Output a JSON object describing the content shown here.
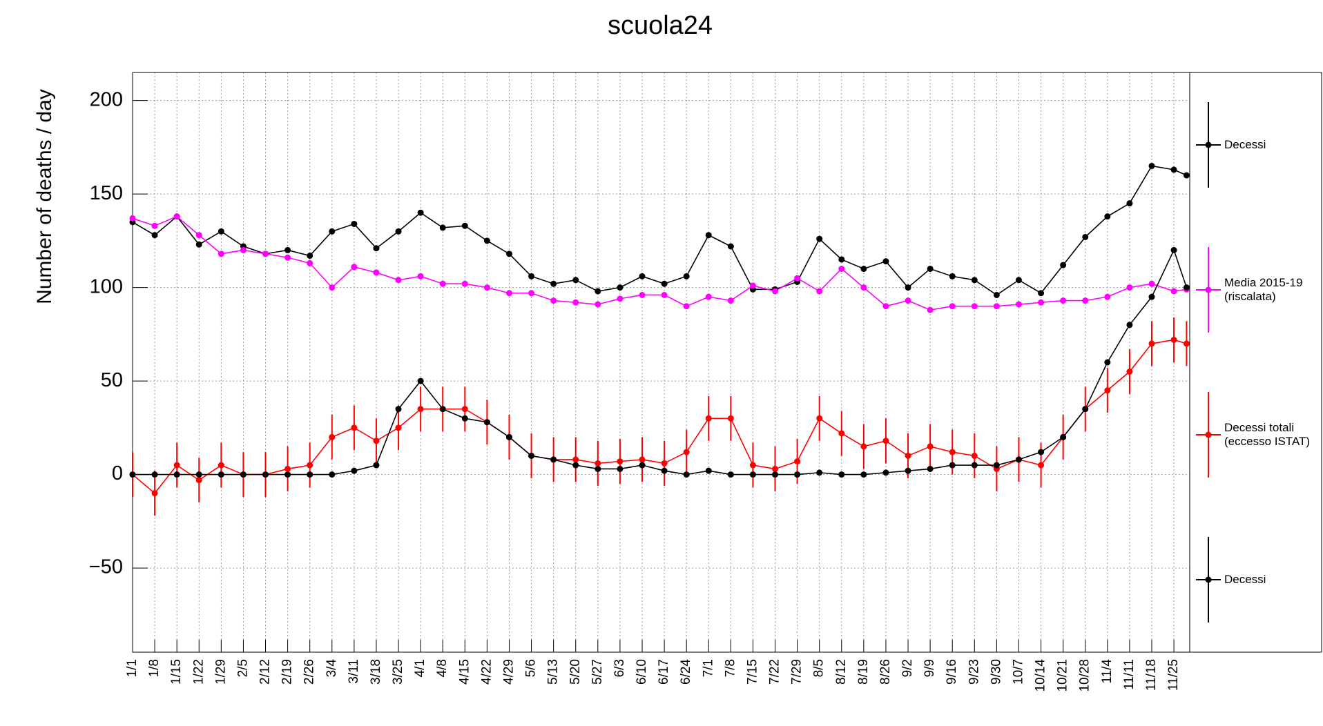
{
  "chart_data": {
    "type": "line",
    "title": "scuola24",
    "y_label": "Number of deaths / day",
    "x": [
      "1/1",
      "1/8",
      "1/15",
      "1/22",
      "1/29",
      "2/5",
      "2/12",
      "2/19",
      "2/26",
      "3/4",
      "3/11",
      "3/18",
      "3/25",
      "4/1",
      "4/8",
      "4/15",
      "4/22",
      "4/29",
      "5/6",
      "5/13",
      "5/20",
      "5/27",
      "6/3",
      "6/10",
      "6/17",
      "6/24",
      "7/1",
      "7/8",
      "7/15",
      "7/22",
      "7/29",
      "8/5",
      "8/12",
      "8/19",
      "8/26",
      "9/2",
      "9/9",
      "9/16",
      "9/23",
      "9/30",
      "10/7",
      "10/14",
      "10/21",
      "10/28",
      "11/4",
      "11/11",
      "11/18",
      "11/25",
      "11/29"
    ],
    "xlim": [
      "1/1",
      "11/30"
    ],
    "xticks": [
      "1/1",
      "1/8",
      "1/15",
      "1/22",
      "1/29",
      "2/5",
      "2/12",
      "2/19",
      "2/26",
      "3/4",
      "3/11",
      "3/18",
      "3/25",
      "4/1",
      "4/8",
      "4/15",
      "4/22",
      "4/29",
      "5/6",
      "5/13",
      "5/20",
      "5/27",
      "6/3",
      "6/10",
      "6/17",
      "6/24",
      "7/1",
      "7/8",
      "7/15",
      "7/22",
      "7/29",
      "8/5",
      "8/12",
      "8/19",
      "8/26",
      "9/2",
      "9/9",
      "9/16",
      "9/23",
      "9/30",
      "10/7",
      "10/14",
      "10/21",
      "10/28",
      "11/4",
      "11/11",
      "11/18",
      "11/25"
    ],
    "ylim": [
      -95,
      215
    ],
    "yticks": [
      {
        "value": -50,
        "label": "−50"
      },
      0,
      50,
      100,
      150,
      200
    ],
    "grid": true,
    "legend": "right",
    "series": [
      {
        "name": "Decessi",
        "color": "#000000",
        "values": [
          135,
          128,
          138,
          123,
          130,
          122,
          118,
          120,
          117,
          130,
          134,
          121,
          130,
          140,
          132,
          133,
          125,
          118,
          106,
          102,
          104,
          98,
          100,
          106,
          102,
          106,
          128,
          122,
          99,
          99,
          103,
          126,
          115,
          110,
          114,
          100,
          110,
          106,
          104,
          96,
          104,
          97,
          112,
          127,
          138,
          145,
          165,
          163,
          160
        ]
      },
      {
        "name": "Media 2015-19 (riscalata)",
        "color": "#ff00ff",
        "values": [
          137,
          133,
          138,
          128,
          118,
          120,
          118,
          116,
          113,
          100,
          111,
          108,
          104,
          106,
          102,
          102,
          100,
          97,
          97,
          93,
          92,
          91,
          94,
          96,
          96,
          90,
          95,
          93,
          101,
          98,
          105,
          98,
          110,
          100,
          90,
          93,
          88,
          90,
          90,
          90,
          91,
          92,
          93,
          93,
          95,
          100,
          102,
          98,
          99
        ]
      },
      {
        "name": "Decessi totali (eccesso ISTAT)",
        "color": "#ff0000",
        "values": [
          0,
          -10,
          5,
          -3,
          5,
          0,
          0,
          3,
          5,
          20,
          25,
          18,
          25,
          35,
          35,
          35,
          28,
          20,
          10,
          8,
          8,
          6,
          7,
          8,
          6,
          12,
          30,
          30,
          5,
          3,
          7,
          30,
          22,
          15,
          18,
          10,
          15,
          12,
          10,
          3,
          8,
          5,
          20,
          35,
          45,
          55,
          70,
          72,
          70
        ],
        "errors": [
          12,
          12,
          12,
          12,
          12,
          12,
          12,
          12,
          12,
          12,
          12,
          12,
          12,
          12,
          12,
          12,
          12,
          12,
          12,
          12,
          12,
          12,
          12,
          12,
          12,
          12,
          12,
          12,
          12,
          12,
          12,
          12,
          12,
          12,
          12,
          12,
          12,
          12,
          12,
          12,
          12,
          12,
          12,
          12,
          12,
          12,
          12,
          12,
          12
        ]
      },
      {
        "name": "Decessi",
        "color": "#000000",
        "values": [
          0,
          0,
          0,
          0,
          0,
          0,
          0,
          0,
          0,
          0,
          2,
          5,
          35,
          50,
          35,
          30,
          28,
          20,
          10,
          8,
          5,
          3,
          3,
          5,
          2,
          0,
          2,
          0,
          0,
          0,
          0,
          1,
          0,
          0,
          1,
          2,
          3,
          5,
          5,
          5,
          8,
          12,
          20,
          35,
          60,
          80,
          95,
          120,
          100
        ]
      }
    ]
  }
}
